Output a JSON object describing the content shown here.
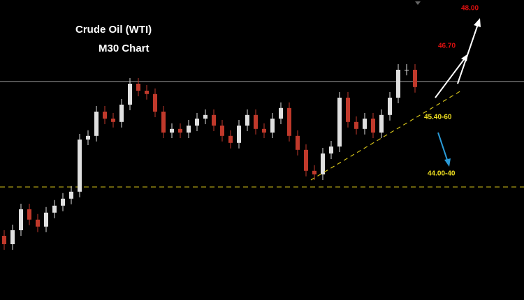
{
  "chart_data": {
    "type": "candlestick",
    "title": "Crude Oil (WTI)",
    "subtitle": "M30 Chart",
    "annotations": [
      "48.00",
      "46.70",
      "45.40-60",
      "44.00-40"
    ],
    "open": [
      40.3,
      40.0,
      40.5,
      41.25,
      40.88,
      40.63,
      41.13,
      41.38,
      41.63,
      41.88,
      43.75,
      43.88,
      44.75,
      44.5,
      44.38,
      45.0,
      45.75,
      45.5,
      45.38,
      44.75,
      44.0,
      44.13,
      44.0,
      44.25,
      44.5,
      44.63,
      44.25,
      43.88,
      43.63,
      44.25,
      44.63,
      44.13,
      44.0,
      44.5,
      44.88,
      43.88,
      43.38,
      42.63,
      42.5,
      43.25,
      43.5,
      45.25,
      44.38,
      44.13,
      44.5,
      44.0,
      44.63,
      45.25,
      46.25,
      46.25
    ],
    "high": [
      40.5,
      40.7,
      41.45,
      41.45,
      41.08,
      41.33,
      41.58,
      41.83,
      42.08,
      43.95,
      44.08,
      44.95,
      44.95,
      44.7,
      45.2,
      45.95,
      45.95,
      45.7,
      45.58,
      44.95,
      44.33,
      44.33,
      44.45,
      44.7,
      44.83,
      44.83,
      44.45,
      44.08,
      44.45,
      44.83,
      44.83,
      44.33,
      44.7,
      45.08,
      45.08,
      44.08,
      43.58,
      42.83,
      43.45,
      43.7,
      45.45,
      45.45,
      44.58,
      44.7,
      44.7,
      44.83,
      45.45,
      46.45,
      46.45,
      46.45
    ],
    "low": [
      39.8,
      39.8,
      40.3,
      40.68,
      40.43,
      40.43,
      40.93,
      41.18,
      41.43,
      41.68,
      43.55,
      43.68,
      44.3,
      44.18,
      44.18,
      44.8,
      45.3,
      45.18,
      44.55,
      43.8,
      43.8,
      43.8,
      43.8,
      44.05,
      44.3,
      44.05,
      43.68,
      43.43,
      43.43,
      44.05,
      43.93,
      43.8,
      43.8,
      44.3,
      43.68,
      43.18,
      42.43,
      42.3,
      42.3,
      43.05,
      43.3,
      44.18,
      43.93,
      43.93,
      43.8,
      43.8,
      44.43,
      45.05,
      46.05,
      45.43
    ],
    "close": [
      40.0,
      40.5,
      41.25,
      40.88,
      40.63,
      41.13,
      41.38,
      41.63,
      41.88,
      43.75,
      43.88,
      44.75,
      44.5,
      44.38,
      45.0,
      45.75,
      45.5,
      45.38,
      44.75,
      44.0,
      44.13,
      44.0,
      44.25,
      44.5,
      44.63,
      44.25,
      43.88,
      43.63,
      44.25,
      44.63,
      44.13,
      44.0,
      44.5,
      44.88,
      43.88,
      43.38,
      42.63,
      42.5,
      43.25,
      43.5,
      45.25,
      44.38,
      44.13,
      44.5,
      44.0,
      44.63,
      45.25,
      46.25,
      46.25,
      45.63
    ],
    "up_color": "#e0e0e0",
    "down_color": "#c0392b",
    "levels": [
      42.05,
      45.83
    ],
    "level_colors": [
      "#d4c21a",
      "#888888"
    ],
    "ylim": [
      38,
      48.75
    ]
  }
}
